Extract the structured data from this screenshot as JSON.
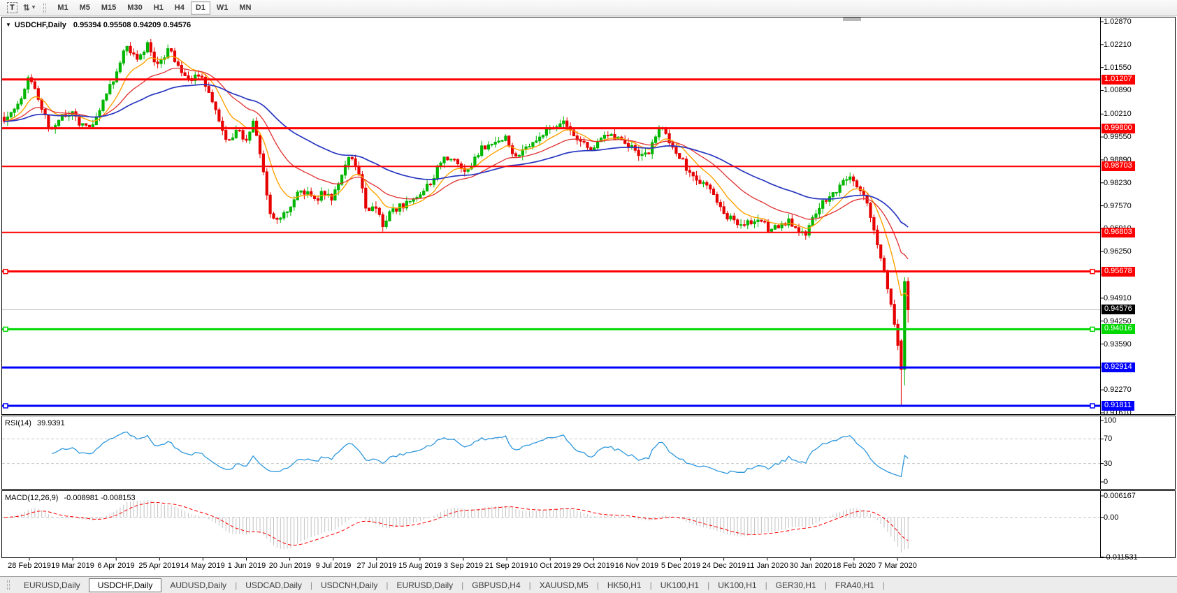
{
  "toolbar": {
    "text_tool_glyph": "T",
    "pointer_tool_glyph": "⇅",
    "dropdown_caret": "▾",
    "timeframes": [
      "M1",
      "M5",
      "M15",
      "M30",
      "H1",
      "H4",
      "D1",
      "W1",
      "MN"
    ],
    "active_timeframe": "D1"
  },
  "chart_header": {
    "collapse_glyph": "▼",
    "symbol": "USDCHF,Daily",
    "ohlc": "0.95394 0.95508 0.94209 0.94576"
  },
  "price_axis": {
    "ticks": [
      "1.02870",
      "1.02210",
      "1.01550",
      "1.00890",
      "1.00210",
      "0.99550",
      "0.98890",
      "0.98230",
      "0.97570",
      "0.96910",
      "0.96250",
      "0.95590",
      "0.94910",
      "0.94250",
      "0.93590",
      "0.92930",
      "0.92270",
      "0.91610"
    ]
  },
  "hlines": [
    {
      "price": "1.01207",
      "color": "#ff0000",
      "width": 3,
      "handles": false
    },
    {
      "price": "0.99800",
      "color": "#ff0000",
      "width": 3,
      "handles": false
    },
    {
      "price": "0.98703",
      "color": "#ff0000",
      "width": 2,
      "handles": false
    },
    {
      "price": "0.96803",
      "color": "#ff0000",
      "width": 2,
      "handles": false
    },
    {
      "price": "0.95678",
      "color": "#ff0000",
      "width": 3,
      "handles": true
    },
    {
      "price": "0.94016",
      "color": "#00d800",
      "width": 3,
      "handles": true
    },
    {
      "price": "0.92914",
      "color": "#0000ff",
      "width": 3,
      "handles": false
    },
    {
      "price": "0.91811",
      "color": "#0000ff",
      "width": 3,
      "handles": true
    }
  ],
  "current_price": {
    "price": "0.94576",
    "line_color": "#bcbcbc",
    "label_bg": "#000000"
  },
  "time_axis": {
    "dates": [
      "28 Feb 2019",
      "19 Mar 2019",
      "6 Apr 2019",
      "25 Apr 2019",
      "14 May 2019",
      "1 Jun 2019",
      "20 Jun 2019",
      "9 Jul 2019",
      "27 Jul 2019",
      "15 Aug 2019",
      "3 Sep 2019",
      "21 Sep 2019",
      "10 Oct 2019",
      "29 Oct 2019",
      "16 Nov 2019",
      "5 Dec 2019",
      "24 Dec 2019",
      "11 Jan 2020",
      "30 Jan 2020",
      "18 Feb 2020",
      "7 Mar 2020"
    ]
  },
  "rsi_panel": {
    "label": "RSI(14)",
    "value": "39.9391",
    "scale": [
      "100",
      "70",
      "30",
      "0"
    ],
    "level_values": [
      70,
      30
    ]
  },
  "macd_panel": {
    "label": "MACD(12,26,9)",
    "values": "-0.008981 -0.008153",
    "scale": [
      "0.006167",
      "0.00",
      "-0.011531"
    ]
  },
  "tabs": {
    "separator": "|",
    "active_index": 1,
    "items": [
      "EURUSD,Daily",
      "USDCHF,Daily",
      "AUDUSD,Daily",
      "USDCAD,Daily",
      "USDCNH,Daily",
      "EURUSD,Daily",
      "GBPUSD,H4",
      "XAUUSD,M5",
      "HK50,H1",
      "UK100,H1",
      "UK100,H1",
      "GER30,H1",
      "FRA40,H1"
    ]
  },
  "chart_data": {
    "type": "candlestick",
    "symbol": "USDCHF",
    "timeframe": "Daily",
    "last_bar": {
      "open": 0.95394,
      "high": 0.95508,
      "low": 0.94209,
      "close": 0.94576
    },
    "bull_color": "#00b600",
    "bear_color": "#e60000",
    "ma": [
      {
        "period": 10,
        "color": "#ffa200",
        "width": 1.4
      },
      {
        "period": 25,
        "color": "#e03030",
        "width": 1.3
      },
      {
        "period": 60,
        "color": "#2836c0",
        "width": 1.7
      }
    ],
    "rsi": {
      "period": 14,
      "color": "#2e97dc",
      "last": 39.9391
    },
    "macd": {
      "fast": 12,
      "slow": 26,
      "signal": 9,
      "hist_color": "#c2c2c2",
      "signal_color": "#ff0000",
      "main_last": -0.008981,
      "signal_last": -0.008153,
      "axis_max": 0.006167,
      "axis_min": -0.011531
    },
    "price_axis_range": [
      0.9161,
      1.0287
    ],
    "support_resistance": [
      1.01207,
      0.998,
      0.98703,
      0.96803,
      0.95678,
      0.94016,
      0.92914,
      0.91811
    ],
    "price_path": [
      [
        6,
        1.0005
      ],
      [
        21,
        1.003
      ],
      [
        41,
        1.0125
      ],
      [
        57,
        1.006
      ],
      [
        72,
        0.996
      ],
      [
        87,
        1.0015
      ],
      [
        103,
        1.002
      ],
      [
        118,
        0.9985
      ],
      [
        134,
        0.999
      ],
      [
        149,
        1.007
      ],
      [
        165,
        1.013
      ],
      [
        180,
        1.0215
      ],
      [
        196,
        1.018
      ],
      [
        211,
        1.022
      ],
      [
        226,
        1.0155
      ],
      [
        242,
        1.021
      ],
      [
        257,
        1.015
      ],
      [
        273,
        1.0125
      ],
      [
        288,
        1.0135
      ],
      [
        304,
        1.0055
      ],
      [
        319,
        0.9965
      ],
      [
        329,
        0.994
      ],
      [
        340,
        0.998
      ],
      [
        350,
        0.993
      ],
      [
        362,
        1.0
      ],
      [
        373,
        0.99
      ],
      [
        386,
        0.9745
      ],
      [
        399,
        0.971
      ],
      [
        412,
        0.9745
      ],
      [
        424,
        0.979
      ],
      [
        437,
        0.9795
      ],
      [
        450,
        0.977
      ],
      [
        463,
        0.98
      ],
      [
        476,
        0.9775
      ],
      [
        489,
        0.985
      ],
      [
        501,
        0.99
      ],
      [
        512,
        0.986
      ],
      [
        525,
        0.9735
      ],
      [
        537,
        0.975
      ],
      [
        548,
        0.97
      ],
      [
        561,
        0.9745
      ],
      [
        574,
        0.9755
      ],
      [
        589,
        0.978
      ],
      [
        602,
        0.9795
      ],
      [
        618,
        0.983
      ],
      [
        633,
        0.99
      ],
      [
        646,
        0.9895
      ],
      [
        659,
        0.986
      ],
      [
        674,
        0.987
      ],
      [
        688,
        0.992
      ],
      [
        700,
        0.993
      ],
      [
        712,
        0.995
      ],
      [
        726,
        0.995
      ],
      [
        736,
        0.99
      ],
      [
        749,
        0.992
      ],
      [
        762,
        0.993
      ],
      [
        774,
        0.9965
      ],
      [
        787,
        0.998
      ],
      [
        801,
        1.0
      ],
      [
        813,
        0.999
      ],
      [
        823,
        0.995
      ],
      [
        836,
        0.9935
      ],
      [
        849,
        0.992
      ],
      [
        862,
        0.995
      ],
      [
        875,
        0.996
      ],
      [
        887,
        0.9955
      ],
      [
        901,
        0.993
      ],
      [
        914,
        0.991
      ],
      [
        926,
        0.9905
      ],
      [
        939,
        0.996
      ],
      [
        949,
        0.999
      ],
      [
        959,
        0.993
      ],
      [
        973,
        0.99
      ],
      [
        986,
        0.985
      ],
      [
        998,
        0.982
      ],
      [
        1011,
        0.982
      ],
      [
        1024,
        0.9775
      ],
      [
        1037,
        0.973
      ],
      [
        1050,
        0.9715
      ],
      [
        1062,
        0.9695
      ],
      [
        1076,
        0.9715
      ],
      [
        1089,
        0.972
      ],
      [
        1101,
        0.9685
      ],
      [
        1113,
        0.9695
      ],
      [
        1127,
        0.9715
      ],
      [
        1140,
        0.968
      ],
      [
        1153,
        0.9675
      ],
      [
        1165,
        0.973
      ],
      [
        1178,
        0.9765
      ],
      [
        1192,
        0.979
      ],
      [
        1204,
        0.9825
      ],
      [
        1214,
        0.984
      ],
      [
        1224,
        0.982
      ],
      [
        1235,
        0.98
      ],
      [
        1245,
        0.973
      ],
      [
        1256,
        0.964
      ],
      [
        1266,
        0.956
      ],
      [
        1274,
        0.948
      ],
      [
        1282,
        0.939
      ],
      [
        1288,
        0.931
      ],
      [
        1293,
        0.923
      ],
      [
        1299,
        0.9458
      ]
    ]
  }
}
